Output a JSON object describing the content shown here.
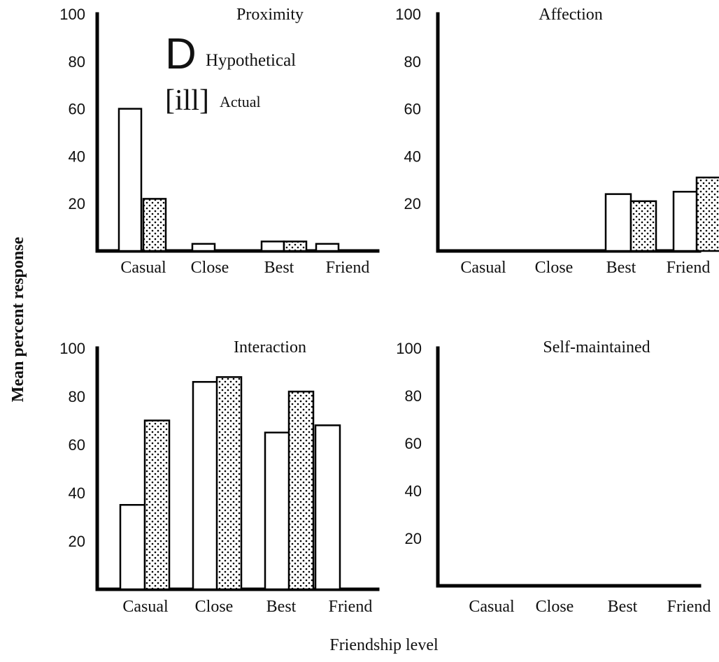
{
  "figure": {
    "y_axis_label": "Mean percent response",
    "x_axis_label": "Friendship level"
  },
  "legend": {
    "entries": [
      {
        "label": "Hypothetical",
        "marker": "D",
        "pattern": "open"
      },
      {
        "label": "Actual",
        "marker": "[ill]",
        "pattern": "dotted"
      }
    ]
  },
  "chart_data": [
    {
      "type": "bar",
      "title": "Proximity",
      "categories": [
        "Casual",
        "Close",
        "Best",
        "Friend"
      ],
      "yticks": [
        20,
        40,
        60,
        80,
        100
      ],
      "ylim": [
        0,
        100
      ],
      "series": [
        {
          "name": "Hypothetical",
          "values": [
            60,
            3,
            4,
            3
          ]
        },
        {
          "name": "Actual",
          "values": [
            22,
            0,
            4,
            0
          ]
        }
      ]
    },
    {
      "type": "bar",
      "title": "Affection",
      "categories": [
        "Casual",
        "Close",
        "Best",
        "Friend"
      ],
      "yticks": [
        20,
        40,
        60,
        80,
        100
      ],
      "ylim": [
        0,
        100
      ],
      "series": [
        {
          "name": "Hypothetical",
          "values": [
            0,
            0,
            24,
            25
          ]
        },
        {
          "name": "Actual",
          "values": [
            0,
            0,
            21,
            31
          ]
        }
      ]
    },
    {
      "type": "bar",
      "title": "Interaction",
      "categories": [
        "Casual",
        "Close",
        "Best",
        "Friend"
      ],
      "yticks": [
        20,
        40,
        60,
        80,
        100
      ],
      "ylim": [
        0,
        100
      ],
      "series": [
        {
          "name": "Hypothetical",
          "values": [
            35,
            86,
            65,
            68
          ]
        },
        {
          "name": "Actual",
          "values": [
            70,
            88,
            82,
            0
          ]
        }
      ]
    },
    {
      "type": "bar",
      "title": "Self-maintained",
      "categories": [
        "Casual",
        "Close",
        "Best",
        "Friend"
      ],
      "yticks": [
        20,
        40,
        60,
        80,
        100
      ],
      "ylim": [
        0,
        100
      ],
      "series": [
        {
          "name": "Hypothetical",
          "values": [
            0,
            0,
            0,
            0
          ]
        },
        {
          "name": "Actual",
          "values": [
            0,
            0,
            0,
            0
          ]
        }
      ]
    }
  ]
}
